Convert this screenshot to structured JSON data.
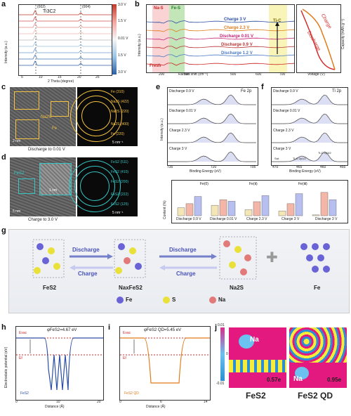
{
  "panels": {
    "a": {
      "label": "a",
      "title": "Ti3C2",
      "xlabel": "2 Theta (degree)",
      "ylabel": "Intensity (a.u.)",
      "peaks": [
        "(002)",
        "(004)"
      ],
      "xticks": [
        "5",
        "10",
        "15",
        "20",
        "25"
      ],
      "colorbar": [
        "3.0 V",
        "1.5 V",
        "0.01 V",
        "1.5 V",
        "3.0 V"
      ]
    },
    "b": {
      "label": "b",
      "regions": [
        "Na-S",
        "Fe-S",
        "Ti-C"
      ],
      "curves": [
        "Charge 3 V",
        "Charge 2.3 V",
        "Discharge 0.01 V",
        "Discharge 0.9 V",
        "Discharge 1.2 V",
        "Fresh"
      ],
      "xlabel": "Raman shift (cm⁻¹)",
      "xticks": [
        "200",
        "300",
        "400",
        "500",
        "600",
        "700"
      ],
      "ylabel": "Intensity (a.u.)",
      "side_xlabel": "Voltage (V)",
      "side_ylabel": "Capacity (mAh g⁻¹)",
      "side_labels": [
        "Charge",
        "Discharge"
      ],
      "side_xticks": [
        "0",
        "1",
        "2",
        "3"
      ]
    },
    "c": {
      "label": "c",
      "caption": "Discharge to 0.01 V",
      "scale_tem": "2 nm",
      "scale_saed": "5 nm⁻¹",
      "rings": [
        "Fe (310)",
        "Na2S (422)",
        "Na2S (220)",
        "Na2S (400)",
        "Fe (220)"
      ],
      "annotations": [
        "Na2S",
        "Fe"
      ]
    },
    "d": {
      "label": "d",
      "caption": "Charge to 3.0 V",
      "scale_tem": "5 nm",
      "scale_saed": "5 nm⁻¹",
      "rings": [
        "FeS2 (511)",
        "FeS2 (410)",
        "FeS2 (200)",
        "FeS2 (222)",
        "FeS2 (125)"
      ],
      "annotations": [
        "FeS2",
        "1 nm"
      ]
    },
    "e": {
      "label": "e",
      "title": "Fe 2p",
      "curves": [
        "Discharge 0.9 V",
        "Discharge 0.01 V",
        "Charge 2.3 V",
        "Charge 3 V"
      ],
      "xlabel": "Binding Energy (eV)",
      "xticks": [
        "735",
        "730",
        "725",
        "720",
        "715",
        "710",
        "705"
      ],
      "ylabel": "Intensity (a.u.)"
    },
    "f": {
      "label": "f",
      "title": "Ti 2p",
      "curves": [
        "Discharge 0.9 V",
        "Discharge 0.01 V",
        "Charge 2.3 V",
        "Charge 3 V"
      ],
      "xlabel": "Binding Energy (eV)",
      "xticks": [
        "470",
        "465",
        "460",
        "455"
      ],
      "annotations": [
        "Sat.",
        "Ti-O 2p1/2",
        "Ti-O 2p3/2"
      ]
    },
    "bar": {
      "ylabel": "Content (%)",
      "legend": [
        "Fe(0)",
        "Fe(Ⅱ)",
        "Fe(Ⅲ)"
      ],
      "categories": [
        "Discharge 0.9 V",
        "Discharge 0.01 V",
        "Charge 2.3 V",
        "Charge 3 V",
        "Discharge 3 V"
      ],
      "yticks": [
        "0",
        "20",
        "40",
        "60"
      ]
    },
    "g": {
      "label": "g",
      "steps": [
        "FeS2",
        "NaxFeS2",
        "Na2S",
        "Fe"
      ],
      "arrows": [
        "Discharge",
        "Charge",
        "Discharge",
        "Charge"
      ],
      "legend": [
        "Fe",
        "S",
        "Na"
      ]
    },
    "h": {
      "label": "h",
      "phi": "φFeS2=4.67 eV",
      "evac": "Evac",
      "ef": "Ef",
      "series": "FeS2",
      "xlabel": "Distance (Å)",
      "ylabel": "Electrostatic potential (eV)",
      "xticks": [
        "0",
        "5",
        "10",
        "15",
        "20"
      ]
    },
    "i": {
      "label": "i",
      "phi": "φFeS2 QD=5.45 eV",
      "evac": "Evac",
      "ef": "Ef",
      "series": "FeS2 QD",
      "xlabel": "Distance (Å)",
      "xticks": [
        "0",
        "2",
        "4",
        "6",
        "8",
        "10",
        "12",
        "14"
      ]
    },
    "j": {
      "label": "j",
      "left": {
        "title": "FeS2",
        "atom": "Na",
        "charge": "0.57e"
      },
      "right": {
        "title": "FeS2 QD",
        "atom": "Na",
        "charge": "0.95e"
      },
      "scale": [
        "0.01",
        "0",
        "-0.01"
      ]
    }
  },
  "chart_data": [
    {
      "type": "bar",
      "title": "",
      "ylabel": "Content (%)",
      "categories": [
        "Discharge 0.9 V",
        "Discharge 0.01 V",
        "Charge 2.3 V",
        "Charge 3 V",
        "Discharge 3 V"
      ],
      "series": [
        {
          "name": "Fe(0)",
          "values": [
            20,
            26,
            15,
            12,
            2
          ]
        },
        {
          "name": "Fe(Ⅱ)",
          "values": [
            30,
            40,
            35,
            30,
            58
          ]
        },
        {
          "name": "Fe(Ⅲ)",
          "values": [
            48,
            36,
            50,
            55,
            40
          ]
        }
      ],
      "ylim": [
        0,
        70
      ]
    },
    {
      "type": "line",
      "title": "",
      "xlabel": "Voltage (V)",
      "ylabel": "Capacity (mAh g⁻¹)",
      "series": [
        {
          "name": "Discharge",
          "x": [
            3.0,
            2.0,
            1.5,
            1.2,
            0.9,
            0.5,
            0.01
          ],
          "y": [
            0,
            120,
            200,
            250,
            300,
            400,
            600
          ]
        },
        {
          "name": "Charge",
          "x": [
            0.01,
            1.0,
            1.8,
            2.0,
            2.3,
            3.0
          ],
          "y": [
            600,
            560,
            500,
            400,
            200,
            0
          ]
        }
      ]
    }
  ],
  "colors": {
    "green": "#9bd58a",
    "pink": "#f7b7b7",
    "yellow": "#f6ef9a",
    "blue_text": "#2b4ea3",
    "orange_text": "#e07b1a",
    "magenta_text": "#c8237a",
    "red": "#d42a2a",
    "bar_fe0": "#f5e6b8",
    "bar_fe2": "#f4b6a6",
    "bar_fe3": "#b7bff0"
  }
}
